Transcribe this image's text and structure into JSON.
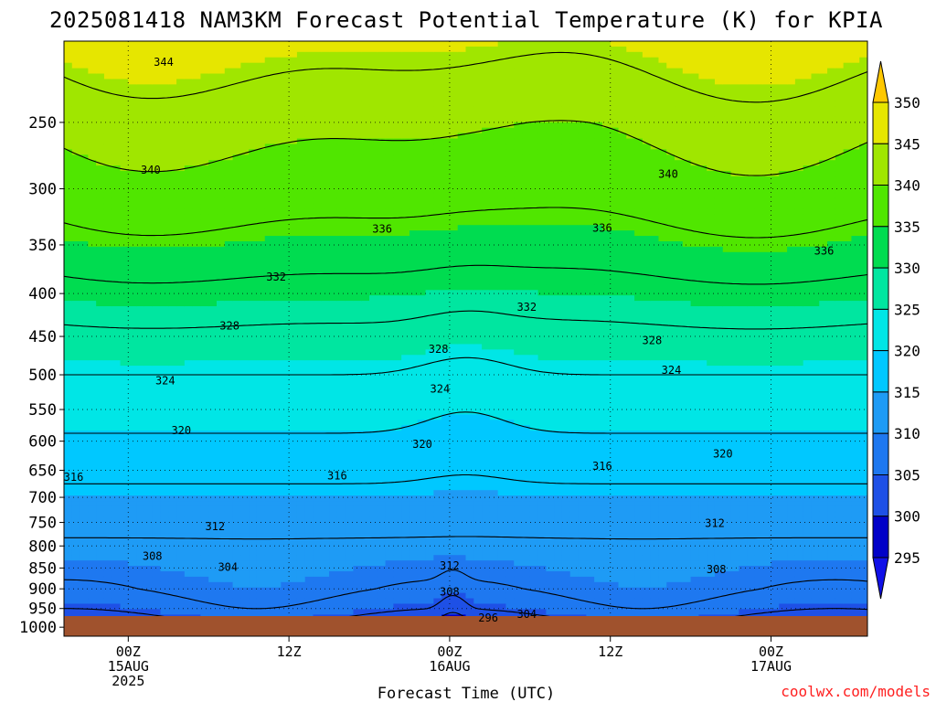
{
  "chart_data": {
    "type": "heatmap",
    "title": "2025081418 NAM3KM Forecast Potential Temperature (K) for KPIA",
    "xlabel": "Forecast Time (UTC)",
    "ylabel": "",
    "pressure_axis": {
      "scale": "log",
      "range_hPa": [
        1025,
        200
      ],
      "ticks": [
        250,
        300,
        350,
        400,
        450,
        500,
        550,
        600,
        650,
        700,
        750,
        800,
        850,
        900,
        950,
        1000
      ]
    },
    "time_axis": {
      "range_hours": [
        -4,
        46
      ],
      "ticks": [
        {
          "hour": 0,
          "lines": [
            "00Z",
            "15AUG",
            "2025"
          ]
        },
        {
          "hour": 10,
          "lines": [
            "12Z"
          ]
        },
        {
          "hour": 20,
          "lines": [
            "00Z",
            "16AUG"
          ]
        },
        {
          "hour": 30,
          "lines": [
            "12Z"
          ]
        },
        {
          "hour": 40,
          "lines": [
            "00Z",
            "17AUG"
          ]
        }
      ]
    },
    "grid": true,
    "colorbar": {
      "position": "right",
      "levels": [
        295,
        300,
        305,
        310,
        315,
        320,
        325,
        330,
        335,
        340,
        345,
        350
      ],
      "colors": [
        "#1010e8",
        "#0000c8",
        "#1e50e6",
        "#1e78f0",
        "#1e9bf5",
        "#00c8ff",
        "#00e6e6",
        "#00e6a0",
        "#00dc50",
        "#50e600",
        "#a0e600",
        "#e6e600",
        "#ffc800"
      ]
    },
    "contour_interval_K": 4,
    "contour_labels": [
      {
        "value": 344,
        "hour": 2.2,
        "p": 212
      },
      {
        "value": 340,
        "hour": 1.4,
        "p": 285
      },
      {
        "value": 340,
        "hour": 33.6,
        "p": 288
      },
      {
        "value": 336,
        "hour": 15.8,
        "p": 335
      },
      {
        "value": 336,
        "hour": 29.5,
        "p": 334
      },
      {
        "value": 336,
        "hour": 43.3,
        "p": 356
      },
      {
        "value": 332,
        "hour": 9.2,
        "p": 382
      },
      {
        "value": 332,
        "hour": 24.8,
        "p": 415
      },
      {
        "value": 328,
        "hour": 6.3,
        "p": 437
      },
      {
        "value": 328,
        "hour": 19.3,
        "p": 466
      },
      {
        "value": 328,
        "hour": 32.6,
        "p": 455
      },
      {
        "value": 324,
        "hour": 2.3,
        "p": 508
      },
      {
        "value": 324,
        "hour": 19.4,
        "p": 520
      },
      {
        "value": 324,
        "hour": 33.8,
        "p": 494
      },
      {
        "value": 320,
        "hour": 3.3,
        "p": 583
      },
      {
        "value": 320,
        "hour": 18.3,
        "p": 605
      },
      {
        "value": 320,
        "hour": 37.0,
        "p": 621
      },
      {
        "value": 316,
        "hour": -3.4,
        "p": 662
      },
      {
        "value": 316,
        "hour": 13.0,
        "p": 660
      },
      {
        "value": 316,
        "hour": 29.5,
        "p": 643
      },
      {
        "value": 312,
        "hour": 5.4,
        "p": 758
      },
      {
        "value": 312,
        "hour": 36.5,
        "p": 752
      },
      {
        "value": 312,
        "hour": 20.0,
        "p": 845
      },
      {
        "value": 308,
        "hour": 1.5,
        "p": 823
      },
      {
        "value": 308,
        "hour": 36.6,
        "p": 853
      },
      {
        "value": 308,
        "hour": 20.0,
        "p": 908
      },
      {
        "value": 304,
        "hour": 6.2,
        "p": 848
      },
      {
        "value": 304,
        "hour": 24.8,
        "p": 965
      },
      {
        "value": 296,
        "hour": 22.4,
        "p": 975
      }
    ]
  },
  "credit": "coolwx.com/models"
}
